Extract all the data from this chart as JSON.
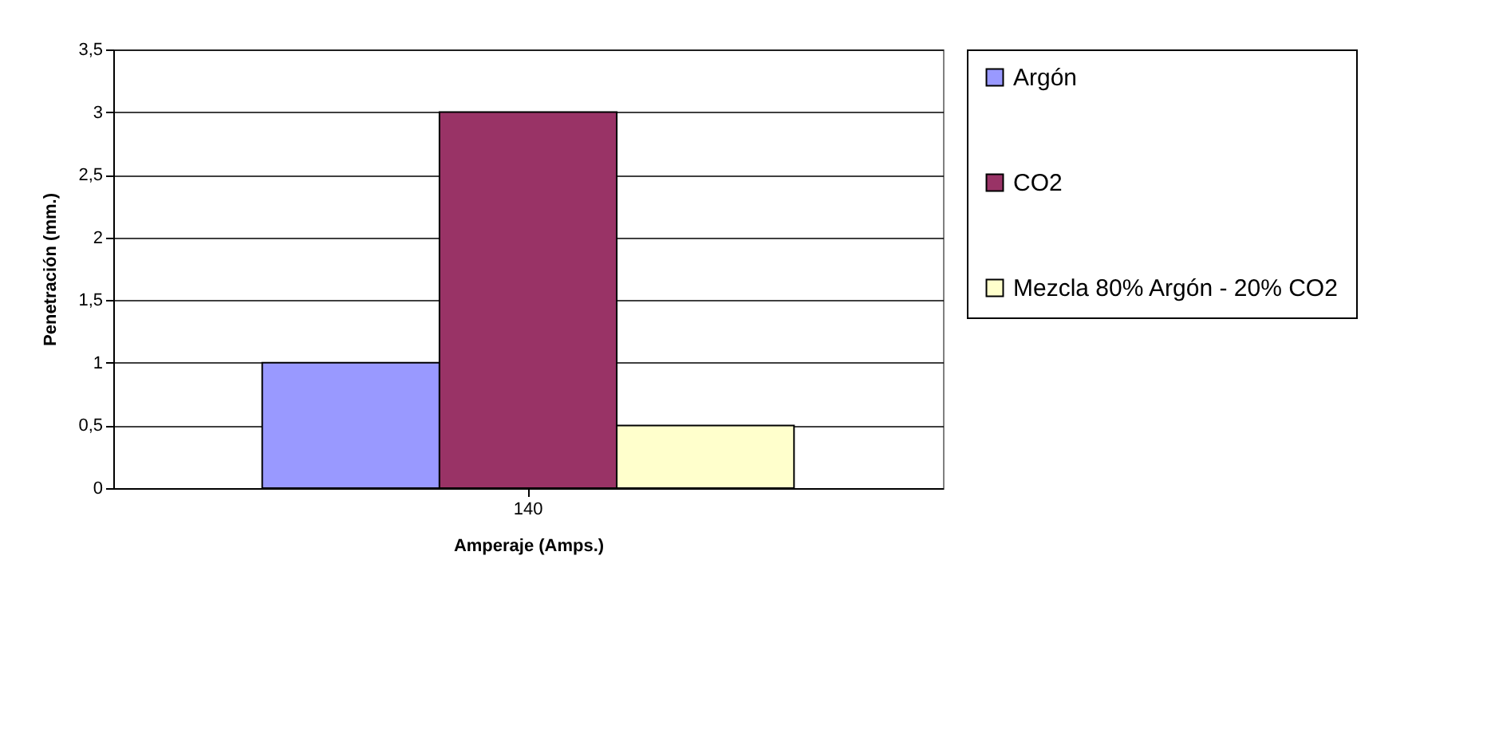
{
  "chart_data": {
    "type": "bar",
    "xlabel": "Amperaje (Amps.)",
    "ylabel": "Penetración (mm.)",
    "categories": [
      "140"
    ],
    "series": [
      {
        "name": "Argón",
        "color": "#9999ff",
        "values": [
          1
        ]
      },
      {
        "name": "CO2",
        "color": "#993366",
        "values": [
          3
        ]
      },
      {
        "name": "Mezcla 80% Argón - 20% CO2",
        "color": "#ffffcc",
        "values": [
          0.5
        ]
      }
    ],
    "ylim": [
      0,
      3.5
    ],
    "yticks": [
      0,
      {
        "value": 0.5,
        "label": "0,5"
      },
      1,
      {
        "value": 1.5,
        "label": "1,5"
      },
      2,
      {
        "value": 2.5,
        "label": "2,5"
      },
      3,
      {
        "value": 3.5,
        "label": "3,5"
      }
    ],
    "grid": "y",
    "legend": "right"
  }
}
